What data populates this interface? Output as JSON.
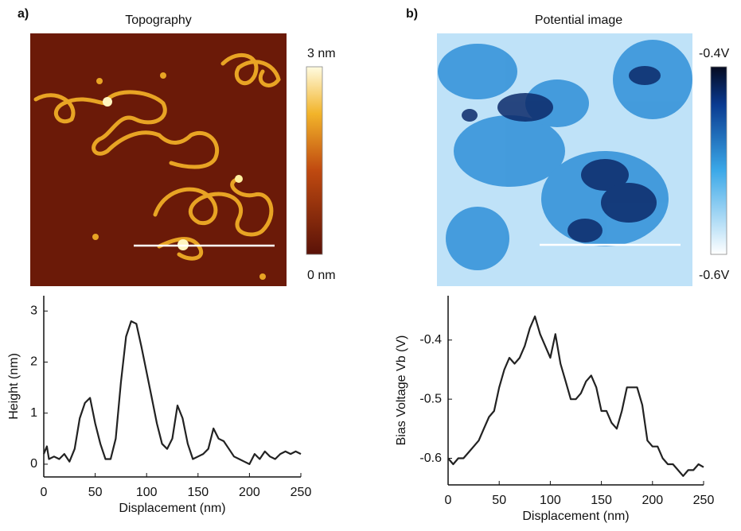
{
  "images": [
    {
      "panel": "a)",
      "title": "Topography",
      "colorbar_max": "3 nm",
      "colorbar_min": "0 nm"
    },
    {
      "panel": "b)",
      "title": "Potential image",
      "colorbar_max": "-0.4V",
      "colorbar_min": "-0.6V"
    }
  ],
  "chart_data": [
    {
      "type": "line",
      "xlabel": "Displacement (nm)",
      "ylabel": "Height (nm)",
      "x": [
        0,
        3,
        5,
        10,
        15,
        20,
        25,
        30,
        35,
        40,
        45,
        48,
        50,
        55,
        60,
        65,
        70,
        75,
        80,
        85,
        90,
        95,
        100,
        105,
        110,
        115,
        120,
        125,
        130,
        135,
        140,
        145,
        150,
        155,
        160,
        165,
        170,
        175,
        180,
        185,
        190,
        195,
        200,
        205,
        210,
        215,
        220,
        225,
        230,
        235,
        240,
        245,
        250
      ],
      "values": [
        0.2,
        0.35,
        0.1,
        0.15,
        0.1,
        0.2,
        0.05,
        0.3,
        0.9,
        1.2,
        1.3,
        1.0,
        0.8,
        0.4,
        0.1,
        0.1,
        0.5,
        1.6,
        2.5,
        2.8,
        2.75,
        2.3,
        1.8,
        1.3,
        0.8,
        0.4,
        0.3,
        0.5,
        1.15,
        0.9,
        0.4,
        0.1,
        0.15,
        0.2,
        0.3,
        0.7,
        0.5,
        0.45,
        0.3,
        0.15,
        0.1,
        0.05,
        0.0,
        0.2,
        0.1,
        0.25,
        0.15,
        0.1,
        0.2,
        0.25,
        0.2,
        0.25,
        0.2
      ],
      "color": "#222222",
      "xlim": [
        0,
        250
      ],
      "ylim": [
        -0.25,
        3.3
      ],
      "xticks": [
        0,
        50,
        100,
        150,
        200,
        250
      ],
      "yticks": [
        0,
        1,
        2,
        3
      ]
    },
    {
      "type": "line",
      "xlabel": "Displacement (nm)",
      "ylabel": "Bias Voltage Vb (V)",
      "x": [
        0,
        5,
        10,
        15,
        20,
        25,
        30,
        35,
        40,
        45,
        50,
        55,
        60,
        65,
        70,
        75,
        80,
        85,
        90,
        95,
        100,
        105,
        110,
        115,
        120,
        125,
        130,
        135,
        140,
        145,
        150,
        155,
        160,
        165,
        170,
        175,
        180,
        185,
        190,
        195,
        200,
        205,
        210,
        215,
        220,
        225,
        230,
        235,
        240,
        245,
        250
      ],
      "values": [
        -0.6,
        -0.61,
        -0.6,
        -0.6,
        -0.59,
        -0.58,
        -0.57,
        -0.55,
        -0.53,
        -0.52,
        -0.48,
        -0.45,
        -0.43,
        -0.44,
        -0.43,
        -0.41,
        -0.38,
        -0.36,
        -0.39,
        -0.41,
        -0.43,
        -0.39,
        -0.44,
        -0.47,
        -0.5,
        -0.5,
        -0.49,
        -0.47,
        -0.46,
        -0.48,
        -0.52,
        -0.52,
        -0.54,
        -0.55,
        -0.52,
        -0.48,
        -0.48,
        -0.48,
        -0.51,
        -0.57,
        -0.58,
        -0.58,
        -0.6,
        -0.61,
        -0.61,
        -0.62,
        -0.63,
        -0.62,
        -0.62,
        -0.61,
        -0.615
      ],
      "color": "#222222",
      "xlim": [
        0,
        250
      ],
      "ylim": [
        -0.645,
        -0.325
      ],
      "xticks": [
        0,
        50,
        100,
        150,
        200,
        250
      ],
      "yticks": [
        -0.6,
        -0.5,
        -0.4
      ]
    }
  ]
}
